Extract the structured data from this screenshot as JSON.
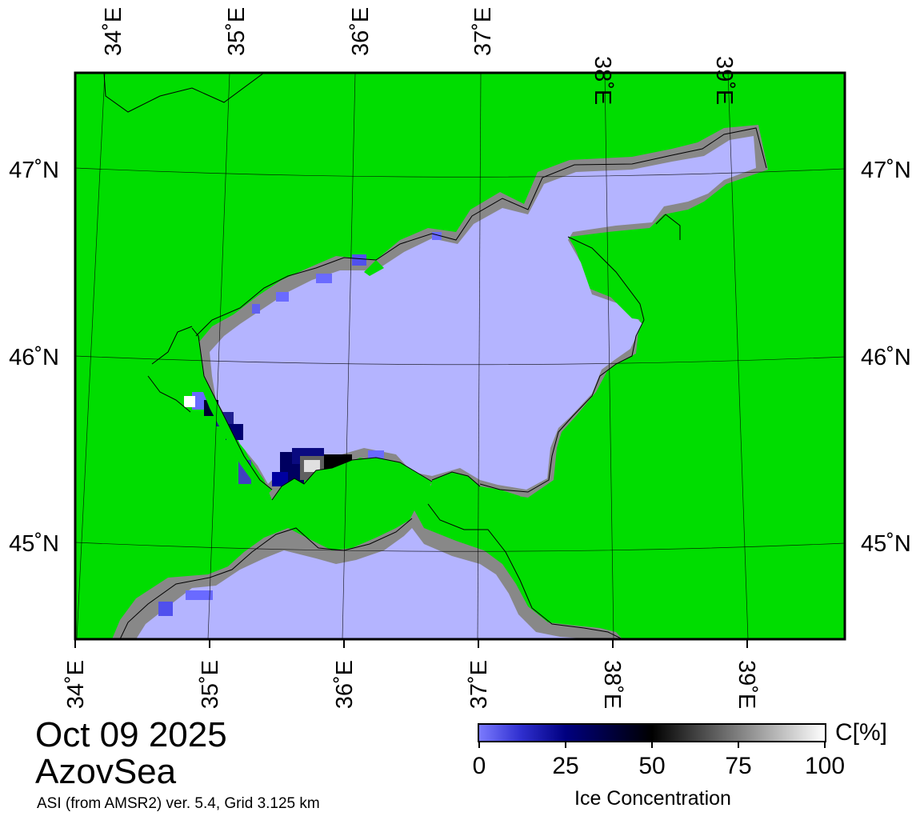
{
  "map": {
    "date": "Oct 09 2025",
    "region": "AzovSea",
    "source": "ASI (from AMSR2) ver. 5.4,  Grid 3.125 km",
    "top_lon_labels": [
      "34˚E",
      "35˚E",
      "36˚E",
      "37˚E",
      "38˚E",
      "39˚E"
    ],
    "bottom_lon_labels": [
      "34˚E",
      "35˚E",
      "36˚E",
      "37˚E",
      "38˚E",
      "39˚E"
    ],
    "left_lat_labels": [
      "47˚N",
      "46˚N",
      "45˚N"
    ],
    "right_lat_labels": [
      "47˚N",
      "46˚N",
      "45˚N"
    ],
    "colors": {
      "land": "#00dd00",
      "coast_mask": "#888888",
      "open_water": "#b4b4ff",
      "ice_low": "#6a6aff",
      "ice_mid": "#00007a",
      "ice_high": "#ffffff"
    }
  },
  "colorbar": {
    "title": "Ice Concentration",
    "unit": "C[%]",
    "min": 0,
    "max": 100,
    "ticks": [
      "0",
      "25",
      "50",
      "75",
      "100"
    ]
  }
}
